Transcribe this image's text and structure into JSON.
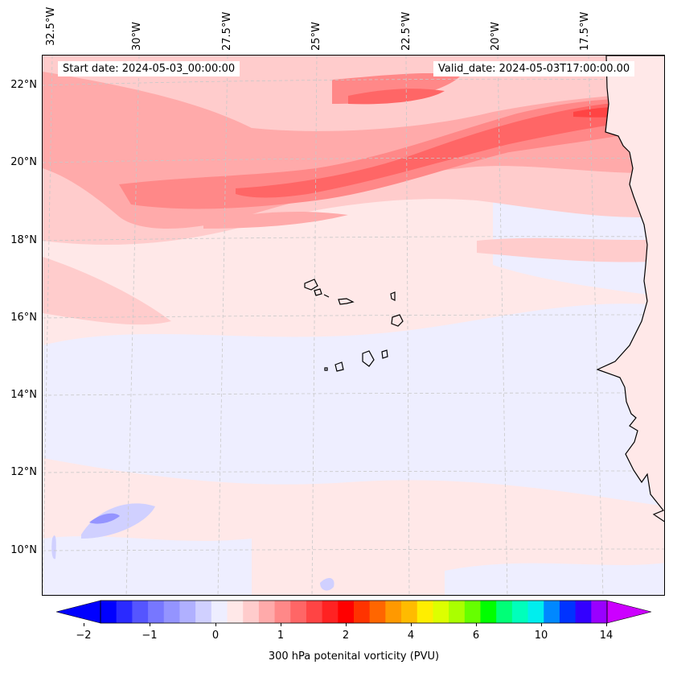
{
  "map": {
    "title_start": "Start date: 2024-05-03_00:00:00",
    "title_valid": "Valid_date: 2024-05-03T17:00:00.00",
    "lon_labels": [
      "32.5°W",
      "30°W",
      "27.5°W",
      "25°W",
      "22.5°W",
      "20°W",
      "17.5°W"
    ],
    "lat_labels": [
      "22°N",
      "20°N",
      "18°N",
      "16°N",
      "14°N",
      "12°N",
      "10°N"
    ],
    "field": "300 hPa potential vorticity",
    "coastline_color": "#000000",
    "gridline_color": "#c8c8c8"
  },
  "colorbar": {
    "label": "300 hPa potenital vorticity (PVU)",
    "tick_labels": [
      "−2",
      "−1",
      "0",
      "1",
      "2",
      "4",
      "6",
      "10",
      "14"
    ],
    "under_color": "#0000ff",
    "over_color": "#cc00ff",
    "colors": [
      "#0000ff",
      "#2a2aff",
      "#5555ff",
      "#7777ff",
      "#9494ff",
      "#b0b0ff",
      "#d0d0ff",
      "#eeeeff",
      "#ffe8e8",
      "#ffcccc",
      "#ffaaaa",
      "#ff8888",
      "#ff6666",
      "#ff4444",
      "#ff2222",
      "#ff0000",
      "#ff3300",
      "#ff6600",
      "#ff9900",
      "#ffbb00",
      "#ffee00",
      "#ddff00",
      "#aaff00",
      "#66ff00",
      "#00ff00",
      "#00ff77",
      "#00ffbb",
      "#00eeee",
      "#0088ff",
      "#0033ff",
      "#3300ff",
      "#9900ff"
    ]
  }
}
